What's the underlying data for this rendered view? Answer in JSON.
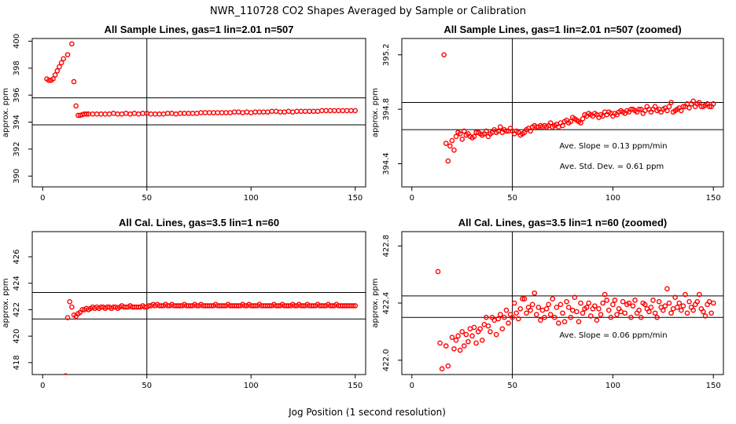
{
  "figure_title": "NWR_110728  CO2 Shapes Averaged by Sample or Calibration",
  "x_axis_label": "Jog Position (1 second resolution)",
  "colors": {
    "points": "#ff0000",
    "lines": "#000000"
  },
  "chart_data": [
    {
      "type": "scatter",
      "title": "All Sample Lines, gas=1 lin=2.01 n=507",
      "ylabel": "approx. ppm",
      "xlim": [
        -5,
        155
      ],
      "ylim": [
        389.2,
        400.2
      ],
      "xticks": [
        "0",
        "50",
        "100",
        "150"
      ],
      "yticks": [
        "390",
        "392",
        "394",
        "396",
        "398",
        "400"
      ],
      "ytick_values": [
        390,
        392,
        394,
        396,
        398,
        400
      ],
      "vline": 50,
      "hlines": [
        393.8,
        395.8
      ],
      "annotations": [],
      "x": [
        2,
        3,
        4,
        5,
        6,
        7,
        8,
        9,
        10,
        12,
        14,
        15,
        16,
        17,
        18,
        19,
        20,
        21,
        22,
        24,
        26,
        28,
        30,
        32,
        34,
        36,
        38,
        40,
        42,
        44,
        46,
        48,
        50,
        52,
        54,
        56,
        58,
        60,
        62,
        64,
        66,
        68,
        70,
        72,
        74,
        76,
        78,
        80,
        82,
        84,
        86,
        88,
        90,
        92,
        94,
        96,
        98,
        100,
        102,
        104,
        106,
        108,
        110,
        112,
        114,
        116,
        118,
        120,
        122,
        124,
        126,
        128,
        130,
        132,
        134,
        136,
        138,
        140,
        142,
        144,
        146,
        148,
        150
      ],
      "y": [
        397.2,
        397.1,
        397.1,
        397.2,
        397.5,
        397.8,
        398.1,
        398.4,
        398.7,
        399.0,
        399.8,
        397.0,
        395.2,
        394.5,
        394.5,
        394.55,
        394.6,
        394.6,
        394.6,
        394.6,
        394.6,
        394.6,
        394.6,
        394.6,
        394.65,
        394.6,
        394.6,
        394.65,
        394.6,
        394.65,
        394.6,
        394.65,
        394.65,
        394.6,
        394.6,
        394.6,
        394.6,
        394.65,
        394.65,
        394.6,
        394.65,
        394.65,
        394.65,
        394.65,
        394.65,
        394.7,
        394.7,
        394.7,
        394.7,
        394.7,
        394.7,
        394.7,
        394.7,
        394.75,
        394.75,
        394.7,
        394.75,
        394.7,
        394.75,
        394.75,
        394.75,
        394.75,
        394.8,
        394.8,
        394.75,
        394.75,
        394.8,
        394.75,
        394.8,
        394.8,
        394.8,
        394.8,
        394.8,
        394.8,
        394.85,
        394.85,
        394.85,
        394.85,
        394.85,
        394.85,
        394.85,
        394.85,
        394.85
      ]
    },
    {
      "type": "scatter",
      "title": "All Sample Lines, gas=1 lin=2.01 n=507 (zoomed)",
      "ylabel": "approx. ppm",
      "xlim": [
        -5,
        155
      ],
      "ylim": [
        394.23,
        395.32
      ],
      "xticks": [
        "0",
        "50",
        "100",
        "150"
      ],
      "yticks": [
        "394.4",
        "394.8",
        "395.2"
      ],
      "ytick_values": [
        394.4,
        394.8,
        395.2
      ],
      "vline": 50,
      "hlines": [
        394.65,
        394.85
      ],
      "annotations": [
        "Ave. Slope =  0.13  ppm/min",
        "Ave. Std. Dev. =  0.61  ppm"
      ],
      "x": [
        16,
        17,
        18,
        19,
        20,
        21,
        22,
        23,
        24,
        25,
        26,
        27,
        28,
        29,
        30,
        31,
        32,
        33,
        34,
        35,
        36,
        37,
        38,
        39,
        40,
        41,
        42,
        43,
        44,
        45,
        46,
        47,
        48,
        49,
        50,
        51,
        52,
        53,
        54,
        55,
        56,
        57,
        58,
        59,
        60,
        61,
        62,
        63,
        64,
        65,
        66,
        67,
        68,
        69,
        70,
        71,
        72,
        73,
        74,
        75,
        76,
        77,
        78,
        79,
        80,
        81,
        82,
        83,
        84,
        85,
        86,
        87,
        88,
        89,
        90,
        91,
        92,
        93,
        94,
        95,
        96,
        97,
        98,
        99,
        100,
        101,
        102,
        103,
        104,
        105,
        106,
        107,
        108,
        109,
        110,
        111,
        112,
        113,
        114,
        115,
        116,
        117,
        118,
        119,
        120,
        121,
        122,
        123,
        124,
        125,
        126,
        127,
        128,
        129,
        130,
        131,
        132,
        133,
        134,
        135,
        136,
        137,
        138,
        139,
        140,
        141,
        142,
        143,
        144,
        145,
        146,
        147,
        148,
        149,
        150
      ],
      "y": [
        395.2,
        394.55,
        394.42,
        394.53,
        394.57,
        394.5,
        394.6,
        394.63,
        394.62,
        394.58,
        394.64,
        394.61,
        394.62,
        394.6,
        394.59,
        394.6,
        394.63,
        394.63,
        394.62,
        394.61,
        394.62,
        394.64,
        394.6,
        394.62,
        394.63,
        394.65,
        394.63,
        394.64,
        394.67,
        394.63,
        394.65,
        394.64,
        394.64,
        394.66,
        394.64,
        394.62,
        394.64,
        394.63,
        394.61,
        394.62,
        394.63,
        394.65,
        394.66,
        394.64,
        394.67,
        394.68,
        394.67,
        394.67,
        394.68,
        394.67,
        394.68,
        394.67,
        394.68,
        394.7,
        394.67,
        394.68,
        394.69,
        394.67,
        394.7,
        394.68,
        394.71,
        394.72,
        394.7,
        394.71,
        394.74,
        394.73,
        394.72,
        394.71,
        394.7,
        394.73,
        394.76,
        394.75,
        394.77,
        394.76,
        394.75,
        394.77,
        394.76,
        394.74,
        394.76,
        394.75,
        394.78,
        394.76,
        394.78,
        394.77,
        394.75,
        394.77,
        394.76,
        394.78,
        394.79,
        394.78,
        394.77,
        394.79,
        394.78,
        394.8,
        394.8,
        394.79,
        394.78,
        394.8,
        394.8,
        394.77,
        394.79,
        394.82,
        394.8,
        394.78,
        394.8,
        394.82,
        394.79,
        394.8,
        394.78,
        394.8,
        394.81,
        394.79,
        394.82,
        394.85,
        394.78,
        394.79,
        394.8,
        394.81,
        394.79,
        394.82,
        394.82,
        394.84,
        394.81,
        394.84,
        394.86,
        394.82,
        394.84,
        394.85,
        394.82,
        394.82,
        394.83,
        394.84,
        394.82,
        394.82,
        394.84
      ]
    },
    {
      "type": "scatter",
      "title": "All Cal. Lines, gas=3.5 lin=1 n=60",
      "ylabel": "approx. ppm",
      "xlim": [
        -5,
        155
      ],
      "ylim": [
        417.1,
        427.9
      ],
      "xticks": [
        "0",
        "50",
        "100",
        "150"
      ],
      "yticks": [
        "418",
        "420",
        "422",
        "424",
        "426"
      ],
      "ytick_values": [
        418,
        420,
        422,
        424,
        426
      ],
      "vline": 50,
      "hlines": [
        421.3,
        423.3
      ],
      "annotations": [],
      "x": [
        11,
        12,
        13,
        14,
        15,
        16,
        17,
        18,
        19,
        20,
        21,
        22,
        23,
        24,
        25,
        26,
        27,
        28,
        29,
        30,
        31,
        32,
        33,
        34,
        35,
        36,
        37,
        38,
        39,
        40,
        41,
        42,
        43,
        44,
        45,
        46,
        47,
        48,
        49,
        50,
        51,
        52,
        53,
        54,
        55,
        56,
        57,
        58,
        59,
        60,
        61,
        62,
        63,
        64,
        65,
        66,
        67,
        68,
        69,
        70,
        71,
        72,
        73,
        74,
        75,
        76,
        77,
        78,
        79,
        80,
        81,
        82,
        83,
        84,
        85,
        86,
        87,
        88,
        89,
        90,
        91,
        92,
        93,
        94,
        95,
        96,
        97,
        98,
        99,
        100,
        101,
        102,
        103,
        104,
        105,
        106,
        107,
        108,
        109,
        110,
        111,
        112,
        113,
        114,
        115,
        116,
        117,
        118,
        119,
        120,
        121,
        122,
        123,
        124,
        125,
        126,
        127,
        128,
        129,
        130,
        131,
        132,
        133,
        134,
        135,
        136,
        137,
        138,
        139,
        140,
        141,
        142,
        143,
        144,
        145,
        146,
        147,
        148,
        149,
        150
      ],
      "y": [
        417.0,
        421.4,
        422.6,
        422.2,
        421.6,
        421.5,
        421.7,
        421.8,
        422.0,
        422.0,
        422.1,
        422.0,
        422.1,
        422.2,
        422.1,
        422.2,
        422.1,
        422.2,
        422.2,
        422.1,
        422.2,
        422.2,
        422.1,
        422.2,
        422.2,
        422.1,
        422.2,
        422.3,
        422.2,
        422.2,
        422.2,
        422.3,
        422.2,
        422.2,
        422.2,
        422.2,
        422.2,
        422.3,
        422.2,
        422.2,
        422.3,
        422.3,
        422.4,
        422.3,
        422.4,
        422.3,
        422.3,
        422.3,
        422.4,
        422.3,
        422.3,
        422.4,
        422.3,
        422.3,
        422.3,
        422.3,
        422.3,
        422.4,
        422.3,
        422.3,
        422.3,
        422.3,
        422.4,
        422.3,
        422.3,
        422.4,
        422.3,
        422.3,
        422.3,
        422.3,
        422.3,
        422.3,
        422.4,
        422.3,
        422.3,
        422.3,
        422.3,
        422.3,
        422.4,
        422.3,
        422.3,
        422.3,
        422.3,
        422.3,
        422.3,
        422.4,
        422.3,
        422.3,
        422.4,
        422.3,
        422.3,
        422.3,
        422.3,
        422.4,
        422.3,
        422.3,
        422.3,
        422.3,
        422.3,
        422.3,
        422.4,
        422.3,
        422.3,
        422.3,
        422.4,
        422.3,
        422.3,
        422.3,
        422.3,
        422.4,
        422.3,
        422.3,
        422.4,
        422.3,
        422.3,
        422.3,
        422.4,
        422.3,
        422.3,
        422.3,
        422.3,
        422.4,
        422.3,
        422.3,
        422.3,
        422.3,
        422.4,
        422.3,
        422.3,
        422.3,
        422.4,
        422.3,
        422.3,
        422.3,
        422.3,
        422.3,
        422.3,
        422.3,
        422.3,
        422.3
      ]
    },
    {
      "type": "scatter",
      "title": "All Cal. Lines, gas=3.5 lin=1 n=60 (zoomed)",
      "ylabel": "approx. ppm",
      "xlim": [
        -5,
        155
      ],
      "ylim": [
        421.9,
        422.9
      ],
      "xticks": [
        "0",
        "50",
        "100",
        "150"
      ],
      "yticks": [
        "422.0",
        "422.4",
        "422.8"
      ],
      "ytick_values": [
        422.0,
        422.4,
        422.8
      ],
      "vline": 50,
      "hlines": [
        422.3,
        422.45
      ],
      "annotations": [
        "Ave. Slope =  0.06  ppm/min"
      ],
      "x": [
        13,
        14,
        15,
        17,
        18,
        19,
        20,
        21,
        22,
        23,
        24,
        25,
        26,
        27,
        28,
        29,
        30,
        31,
        32,
        33,
        34,
        35,
        36,
        37,
        38,
        39,
        40,
        41,
        42,
        43,
        44,
        45,
        46,
        47,
        48,
        49,
        50,
        51,
        52,
        53,
        54,
        55,
        56,
        57,
        58,
        59,
        60,
        61,
        62,
        63,
        64,
        65,
        66,
        67,
        68,
        69,
        70,
        71,
        72,
        73,
        74,
        75,
        76,
        77,
        78,
        79,
        80,
        81,
        82,
        83,
        84,
        85,
        86,
        87,
        88,
        89,
        90,
        91,
        92,
        93,
        94,
        95,
        96,
        97,
        98,
        99,
        100,
        101,
        102,
        103,
        104,
        105,
        106,
        107,
        108,
        109,
        110,
        111,
        112,
        113,
        114,
        115,
        116,
        117,
        118,
        119,
        120,
        121,
        122,
        123,
        124,
        125,
        126,
        127,
        128,
        129,
        130,
        131,
        132,
        133,
        134,
        135,
        136,
        137,
        138,
        139,
        140,
        141,
        142,
        143,
        144,
        145,
        146,
        147,
        148,
        149,
        150
      ],
      "y": [
        422.62,
        422.12,
        421.94,
        422.1,
        421.96,
        421.88,
        422.16,
        422.08,
        422.14,
        422.17,
        422.07,
        422.2,
        422.1,
        422.18,
        422.13,
        422.22,
        422.17,
        422.23,
        422.12,
        422.2,
        422.22,
        422.14,
        422.25,
        422.3,
        422.24,
        422.2,
        422.3,
        422.28,
        422.18,
        422.29,
        422.32,
        422.22,
        422.3,
        422.35,
        422.26,
        422.32,
        422.3,
        422.4,
        422.33,
        422.29,
        422.36,
        422.43,
        422.43,
        422.33,
        422.37,
        422.35,
        422.39,
        422.47,
        422.32,
        422.37,
        422.28,
        422.35,
        422.3,
        422.36,
        422.39,
        422.32,
        422.43,
        422.3,
        422.37,
        422.26,
        422.39,
        422.33,
        422.27,
        422.41,
        422.37,
        422.3,
        422.35,
        422.44,
        422.34,
        422.27,
        422.4,
        422.33,
        422.36,
        422.37,
        422.4,
        422.31,
        422.36,
        422.38,
        422.28,
        422.36,
        422.32,
        422.4,
        422.46,
        422.42,
        422.35,
        422.3,
        422.39,
        422.42,
        422.32,
        422.36,
        422.34,
        422.41,
        422.33,
        422.39,
        422.4,
        422.3,
        422.38,
        422.42,
        422.33,
        422.35,
        422.3,
        422.4,
        422.39,
        422.36,
        422.34,
        422.37,
        422.42,
        422.33,
        422.3,
        422.41,
        422.37,
        422.35,
        422.38,
        422.5,
        422.4,
        422.33,
        422.36,
        422.44,
        422.37,
        422.4,
        422.35,
        422.38,
        422.46,
        422.33,
        422.41,
        422.37,
        422.35,
        422.39,
        422.41,
        422.46,
        422.36,
        422.34,
        422.31,
        422.39,
        422.41,
        422.33,
        422.4
      ]
    }
  ]
}
